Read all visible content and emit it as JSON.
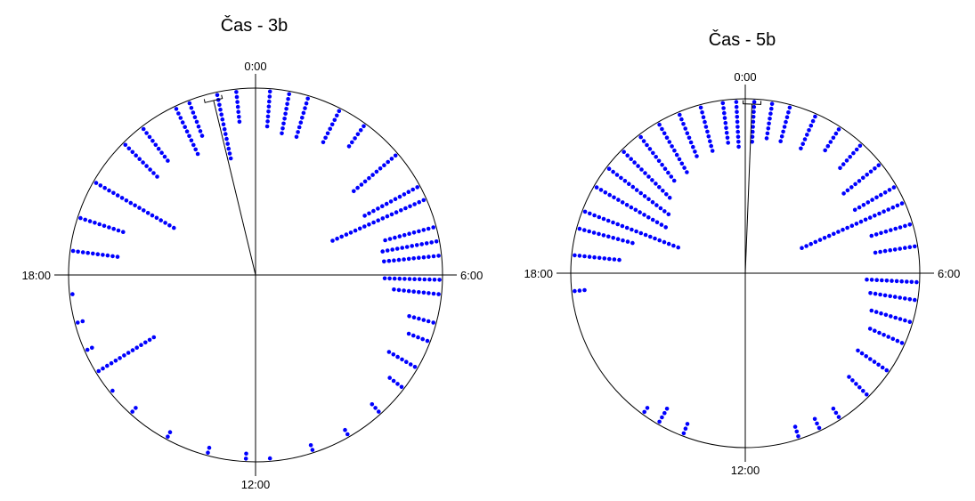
{
  "chart_data": [
    {
      "type": "scatter",
      "subtype": "circular-clock",
      "title": "Čas - 3b",
      "angle_labels": {
        "top": "0:00",
        "right": "6:00",
        "bottom": "12:00",
        "left": "18:00"
      },
      "ticks_hours": [
        0,
        6,
        12,
        18
      ],
      "mean_vector": {
        "hour": 23.1,
        "length": 0.96
      },
      "color": "#0000ff",
      "stacks": [
        {
          "hour": 20.0,
          "count": 19
        },
        {
          "hour": 21.0,
          "count": 10
        },
        {
          "hour": 21.5,
          "count": 9
        },
        {
          "hour": 22.3,
          "count": 11
        },
        {
          "hour": 22.6,
          "count": 8
        },
        {
          "hour": 23.2,
          "count": 14
        },
        {
          "hour": 23.6,
          "count": 7
        },
        {
          "hour": 0.3,
          "count": 8
        },
        {
          "hour": 0.7,
          "count": 9
        },
        {
          "hour": 1.1,
          "count": 9
        },
        {
          "hour": 1.8,
          "count": 8
        },
        {
          "hour": 2.4,
          "count": 6
        },
        {
          "hour": 3.3,
          "count": 12
        },
        {
          "hour": 4.1,
          "count": 13
        },
        {
          "hour": 4.4,
          "count": 21
        },
        {
          "hour": 5.0,
          "count": 11
        },
        {
          "hour": 5.3,
          "count": 12
        },
        {
          "hour": 5.6,
          "count": 12
        },
        {
          "hour": 6.1,
          "count": 12
        },
        {
          "hour": 6.4,
          "count": 10
        },
        {
          "hour": 7.0,
          "count": 6
        },
        {
          "hour": 7.4,
          "count": 5
        },
        {
          "hour": 8.0,
          "count": 7
        },
        {
          "hour": 8.5,
          "count": 4
        },
        {
          "hour": 9.2,
          "count": 3
        },
        {
          "hour": 10.0,
          "count": 2
        },
        {
          "hour": 10.8,
          "count": 2
        },
        {
          "hour": 11.7,
          "count": 1
        },
        {
          "hour": 12.2,
          "count": 2
        },
        {
          "hour": 13.0,
          "count": 2
        },
        {
          "hour": 13.9,
          "count": 2
        },
        {
          "hour": 14.8,
          "count": 2
        },
        {
          "hour": 15.4,
          "count": 1
        },
        {
          "hour": 15.9,
          "count": 14
        },
        {
          "hour": 16.4,
          "count": 2
        },
        {
          "hour": 17.0,
          "count": 2
        },
        {
          "hour": 17.6,
          "count": 1
        },
        {
          "hour": 18.5,
          "count": 10
        },
        {
          "hour": 19.2,
          "count": 10
        }
      ]
    },
    {
      "type": "scatter",
      "subtype": "circular-clock",
      "title": "Čas - 5b",
      "angle_labels": {
        "top": "0:00",
        "right": "6:00",
        "bottom": "12:00",
        "left": "18:00"
      },
      "ticks_hours": [
        0,
        6,
        12,
        18
      ],
      "mean_vector": {
        "hour": 0.15,
        "length": 0.97
      },
      "color": "#0000ff",
      "stacks": [
        {
          "hour": 18.4,
          "count": 10
        },
        {
          "hour": 19.0,
          "count": 12
        },
        {
          "hour": 19.4,
          "count": 21
        },
        {
          "hour": 20.0,
          "count": 17
        },
        {
          "hour": 20.5,
          "count": 16
        },
        {
          "hour": 21.0,
          "count": 14
        },
        {
          "hour": 21.5,
          "count": 12
        },
        {
          "hour": 22.0,
          "count": 12
        },
        {
          "hour": 22.5,
          "count": 10
        },
        {
          "hour": 23.0,
          "count": 10
        },
        {
          "hour": 23.5,
          "count": 9
        },
        {
          "hour": 23.8,
          "count": 10
        },
        {
          "hour": 0.2,
          "count": 9
        },
        {
          "hour": 0.6,
          "count": 8
        },
        {
          "hour": 1.0,
          "count": 8
        },
        {
          "hour": 1.6,
          "count": 8
        },
        {
          "hour": 2.2,
          "count": 6
        },
        {
          "hour": 2.8,
          "count": 7
        },
        {
          "hour": 3.4,
          "count": 10
        },
        {
          "hour": 4.0,
          "count": 10
        },
        {
          "hour": 4.4,
          "count": 23
        },
        {
          "hour": 4.9,
          "count": 9
        },
        {
          "hour": 5.4,
          "count": 9
        },
        {
          "hour": 6.2,
          "count": 11
        },
        {
          "hour": 6.6,
          "count": 10
        },
        {
          "hour": 7.1,
          "count": 9
        },
        {
          "hour": 7.6,
          "count": 8
        },
        {
          "hour": 8.3,
          "count": 8
        },
        {
          "hour": 9.0,
          "count": 6
        },
        {
          "hour": 9.8,
          "count": 3
        },
        {
          "hour": 10.3,
          "count": 3
        },
        {
          "hour": 10.8,
          "count": 3
        },
        {
          "hour": 13.4,
          "count": 3
        },
        {
          "hour": 14.0,
          "count": 4
        },
        {
          "hour": 14.4,
          "count": 2
        },
        {
          "hour": 17.6,
          "count": 3
        }
      ]
    }
  ]
}
